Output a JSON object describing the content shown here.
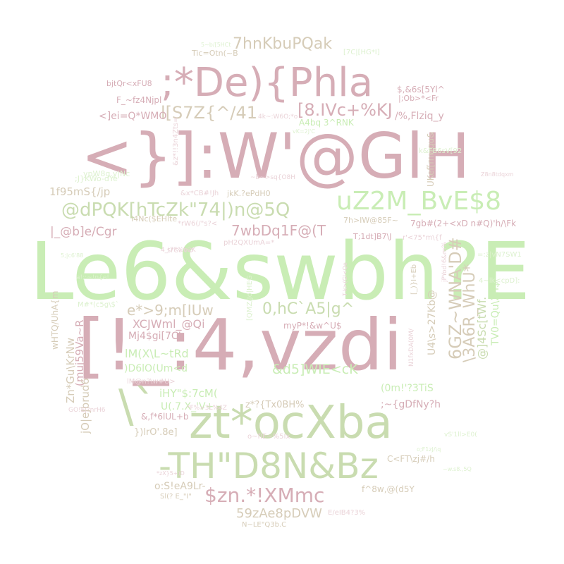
{
  "palette": {
    "rose": "#d6adb6",
    "green": "#c9edb5",
    "sage": "#c9dcb0",
    "tan": "#d6ccb8",
    "pale_rose": "#ead3d8",
    "pale_green": "#ddf1cf"
  },
  "words": [
    {
      "text": "Le6&swbh?E",
      "color": "green"
    },
    {
      "text": "[!_:4,vzdi",
      "color": "rose"
    },
    {
      "text": "<}]:W'@GlH",
      "color": "rose"
    },
    {
      "text": ";*De){Phla",
      "color": "rose"
    },
    {
      "text": "zt*ocXba",
      "color": "sage"
    },
    {
      "text": "-TH\"D8N&Bz",
      "color": "sage"
    },
    {
      "text": "\\`",
      "color": "sage"
    },
    {
      "text": "uZ2M_BvE$8",
      "color": "green"
    },
    {
      "text": "@dPQK[hTcZk\"74|)n@5Q",
      "color": "sage"
    },
    {
      "text": "7hnKbuPQak",
      "color": "tan"
    },
    {
      "text": "[8.IVc+%KJ",
      "color": "rose"
    },
    {
      "text": "l[S7Z{^/41",
      "color": "tan"
    },
    {
      "text": "7wbDq1F@(T",
      "color": "rose"
    },
    {
      "text": "0,hC`A5|g^",
      "color": "sage"
    },
    {
      "text": "e*>9;m[IUw",
      "color": "tan"
    },
    {
      "text": "$zn.*!XMmc",
      "color": "rose"
    },
    {
      "text": "6GZ~WNA'D#",
      "color": "tan"
    },
    {
      "text": "\\3A6R_WhU*",
      "color": "tan"
    },
    {
      "text": "59zAe8pDVW",
      "color": "tan"
    },
    {
      "text": "&d5]WIE<cK",
      "color": "green"
    },
    {
      "text": "|_@b]e/Cgr",
      "color": "rose"
    },
    {
      "text": "1f95mS{/jp",
      "color": "tan"
    },
    {
      "text": "XCJWml_@Qi",
      "color": "rose"
    },
    {
      "text": "/%,Flziq_y",
      "color": "rose"
    },
    {
      "text": "<]ei=Q*WMO",
      "color": "rose"
    },
    {
      "text": "F_~fz4Njpl",
      "color": "rose"
    },
    {
      "text": "bjtQr<xFU8",
      "color": "rose"
    },
    {
      "text": "Tic=Otn(~B",
      "color": "tan"
    },
    {
      "text": "$,&6s[5Yl^",
      "color": "rose"
    },
    {
      "text": "|;Ob>*<Fr",
      "color": "rose"
    },
    {
      "text": "A4bq 3^RNK",
      "color": "green"
    },
    {
      "text": "jkK.?ePdH0",
      "color": "tan"
    },
    {
      "text": "pH2QXUmA=*",
      "color": "pale_rose"
    },
    {
      "text": "7h>IW@85F~",
      "color": "tan"
    },
    {
      "text": "7gb#(2+<xD n#Q)'h/\\Fk",
      "color": "rose"
    },
    {
      "text": "T;1dt]B7\\J",
      "color": "rose"
    },
    {
      "text": "Mj4$gi[7CL",
      "color": "rose"
    },
    {
      "text": "lM(X\\L~tRd",
      "color": "green"
    },
    {
      "text": "(muj59Va~R",
      "color": "rose"
    },
    {
      "text": ")D6lO(Um<d",
      "color": "green"
    },
    {
      "text": "lM@n?\\w#U>",
      "color": "pale_rose"
    },
    {
      "text": "iHY\"$:7cM(",
      "color": "green"
    },
    {
      "text": "U(.7.X_'V+",
      "color": "green"
    },
    {
      "text": "&,f*6lUL+b",
      "color": "rose"
    },
    {
      "text": "})lrO'.8e]",
      "color": "tan"
    },
    {
      "text": "z*?{Tx0BH%",
      "color": "tan"
    },
    {
      "text": ";~{gDfNy?h",
      "color": "rose"
    },
    {
      "text": "(0m!'?3TiS",
      "color": "green"
    },
    {
      "text": "myP*!&w^U$",
      "color": "rose"
    },
    {
      "text": "Zn*Gu\\KrNw",
      "color": "tan"
    },
    {
      "text": "wHTQ/UhA{m",
      "color": "tan"
    },
    {
      "text": "jO|eJbrud6",
      "color": "tan"
    },
    {
      "text": "@]4Sc[tWf.",
      "color": "sage"
    },
    {
      "text": "TV0=Qu\\Xn$",
      "color": "green"
    },
    {
      "text": "U4\\s>27Kb@",
      "color": "tan"
    },
    {
      "text": "o:S!eA9Lr-",
      "color": "tan"
    },
    {
      "text": "f^8w,@(d5Y",
      "color": "tan"
    },
    {
      "text": "C<FT\\zj#/h",
      "color": "tan"
    },
    {
      "text": "E/eIB4?3%",
      "color": "pale_rose"
    },
    {
      "text": "N~LE\"Q3b.C",
      "color": "tan"
    },
    {
      "text": "Sl(? E_\"I\"",
      "color": "tan"
    },
    {
      "text": "o~fIE~%5Ix",
      "color": "pale_rose"
    },
    {
      "text": "UKef[mwqu&",
      "color": "tan"
    },
    {
      "text": "k&FB6sV[92",
      "color": "pale_green"
    },
    {
      "text": "ypW8g.y|Nc",
      "color": "pale_green"
    },
    {
      "text": ";J}KWo-dYe",
      "color": "pale_green"
    },
    {
      "text": "I4Nc($EHlte",
      "color": "tan"
    },
    {
      "text": "*rW6(/\"s?<",
      "color": "pale_rose"
    },
    {
      "text": "r'<75\"m\\{f",
      "color": "pale_rose"
    },
    {
      "text": "4~lk<cpD]:",
      "color": "pale_green"
    },
    {
      "text": "=:z|vN7SW1",
      "color": "pale_green"
    },
    {
      "text": "M#*(c5g\\$`",
      "color": "pale_green"
    },
    {
      "text": "GO!Ej?nrH6",
      "color": "pale_rose"
    },
    {
      "text": "N1fxDA(0M/",
      "color": "pale_rose"
    },
    {
      "text": "&z*!!3n4Zts=",
      "color": "pale_rose"
    },
    {
      "text": "[QMZ/Jo|HEG",
      "color": "pale_green"
    },
    {
      "text": "jPYod!6&m%",
      "color": "pale_rose"
    },
    {
      "text": "[_)}I+Eb",
      "color": "tan"
    },
    {
      "text": "*F%>3L%4Z",
      "color": "pale_rose"
    },
    {
      "text": "[7C|[HG*I]",
      "color": "pale_green"
    },
    {
      "text": "5~b/[5HCt",
      "color": "pale_green"
    },
    {
      "text": "Z8n8tdqxm",
      "color": "pale_rose"
    },
    {
      "text": "&x*CB#!Jh",
      "color": "pale_rose"
    },
    {
      "text": "~b~>sq{O8H",
      "color": "pale_rose"
    },
    {
      "text": "4k~:W6O;*o",
      "color": "pale_rose"
    },
    {
      "text": "vK=2J'C",
      "color": "pale_green"
    },
    {
      "text": "5;|c6'88",
      "color": "pale_green"
    },
    {
      "text": "4_i7F%b2K",
      "color": "pale_rose"
    },
    {
      "text": "a!;:~!n{e!",
      "color": "pale_green"
    },
    {
      "text": "T-k>(Gl<Qe",
      "color": "pale_rose"
    },
    {
      "text": "vS'1ll>E0(",
      "color": "pale_green"
    },
    {
      "text": "~w.s8.,5Q",
      "color": "pale_green"
    },
    {
      "text": "o;F1zJ/\\q",
      "color": "pale_green"
    },
    {
      "text": "*zX}5+)D",
      "color": "pale_rose"
    },
    {
      "text": "SFGv`\\*0",
      "color": "pale_rose"
    }
  ]
}
